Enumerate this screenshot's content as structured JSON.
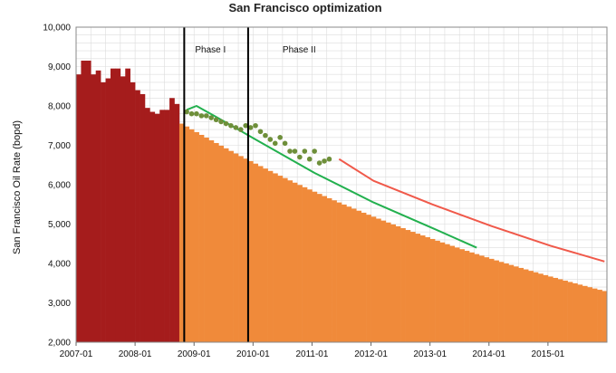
{
  "chart_data": {
    "type": "bar",
    "title": "San Francisco optimization",
    "xlabel": "",
    "ylabel": "San Francisco Oil Rate (bopd)",
    "ylim": [
      2000,
      10000
    ],
    "y_ticks": [
      "2,000",
      "3,000",
      "4,000",
      "5,000",
      "6,000",
      "7,000",
      "8,000",
      "9,000",
      "10,000"
    ],
    "x_ticks": [
      "2007-01",
      "2008-01",
      "2009-01",
      "2010-01",
      "2011-01",
      "2012-01",
      "2013-01",
      "2014-01",
      "2015-01"
    ],
    "grid": true,
    "legend": "none",
    "phase_labels": [
      "Phase I",
      "Phase II"
    ],
    "phase_lines": [
      "2008-11",
      "2009-12"
    ],
    "colors": {
      "historical": "#a51c1c",
      "forecast": "#f08a3a",
      "green_curve": "#22b04e",
      "red_curve": "#f0594a",
      "dots": "#6e8f3a"
    },
    "series": [
      {
        "type": "bar",
        "color": "#a51c1c",
        "start": "2007-01",
        "values": [
          8800,
          9150,
          9150,
          8800,
          8900,
          8600,
          8700,
          8950,
          8950,
          8750,
          8950,
          8600,
          8400,
          8300,
          7950,
          7850,
          7800,
          7900,
          7900,
          8200,
          8050
        ]
      },
      {
        "type": "bar",
        "color": "#f08a3a",
        "start": "2008-10",
        "end": "2015-12",
        "from": 7550,
        "to": 3300
      },
      {
        "type": "line",
        "color": "#22b04e",
        "points": [
          [
            "2008-11",
            7900
          ],
          [
            "2009-01",
            8000
          ],
          [
            "2009-06",
            7650
          ],
          [
            "2010-01",
            7150
          ],
          [
            "2011-01",
            6300
          ],
          [
            "2012-01",
            5550
          ],
          [
            "2013-01",
            4900
          ],
          [
            "2013-10",
            4400
          ]
        ]
      },
      {
        "type": "line",
        "color": "#f0594a",
        "points": [
          [
            "2011-06",
            6650
          ],
          [
            "2012-01",
            6100
          ],
          [
            "2013-01",
            5500
          ],
          [
            "2014-01",
            4950
          ],
          [
            "2015-01",
            4450
          ],
          [
            "2015-12",
            4050
          ]
        ]
      },
      {
        "type": "scatter",
        "color": "#6e8f3a",
        "points": [
          [
            "2008-11",
            7850
          ],
          [
            "2008-12",
            7800
          ],
          [
            "2009-01",
            7800
          ],
          [
            "2009-02",
            7750
          ],
          [
            "2009-03",
            7750
          ],
          [
            "2009-04",
            7700
          ],
          [
            "2009-05",
            7650
          ],
          [
            "2009-06",
            7600
          ],
          [
            "2009-07",
            7550
          ],
          [
            "2009-08",
            7500
          ],
          [
            "2009-09",
            7450
          ],
          [
            "2009-10",
            7400
          ],
          [
            "2009-11",
            7500
          ],
          [
            "2009-12",
            7450
          ],
          [
            "2010-01",
            7500
          ],
          [
            "2010-02",
            7350
          ],
          [
            "2010-03",
            7250
          ],
          [
            "2010-04",
            7150
          ],
          [
            "2010-05",
            7050
          ],
          [
            "2010-06",
            7200
          ],
          [
            "2010-07",
            7050
          ],
          [
            "2010-08",
            6850
          ],
          [
            "2010-09",
            6850
          ],
          [
            "2010-10",
            6700
          ],
          [
            "2010-11",
            6850
          ],
          [
            "2010-12",
            6650
          ],
          [
            "2011-01",
            6850
          ],
          [
            "2011-02",
            6550
          ],
          [
            "2011-03",
            6600
          ],
          [
            "2011-04",
            6650
          ]
        ]
      }
    ]
  }
}
